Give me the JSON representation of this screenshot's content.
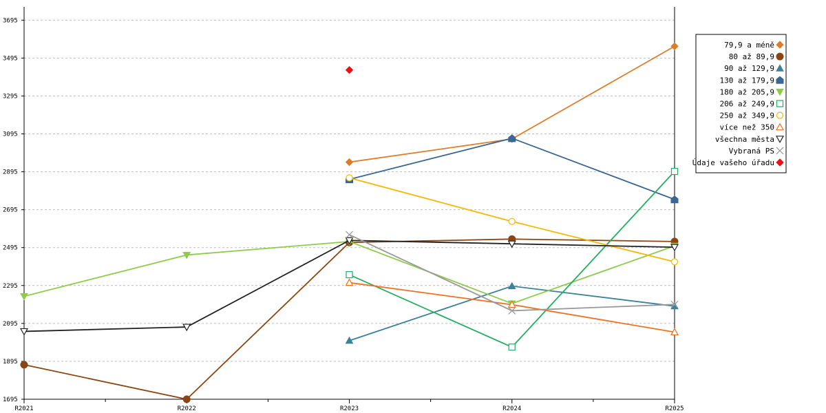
{
  "chart_data": {
    "type": "line",
    "title": "",
    "xlabel": "",
    "ylabel": "",
    "categories": [
      "R2021",
      "R2022",
      "R2023",
      "R2024",
      "R2025"
    ],
    "ylim": [
      1695,
      3765
    ],
    "yticks": [
      1695,
      1895,
      2095,
      2295,
      2495,
      2695,
      2895,
      3095,
      3295,
      3495,
      3695
    ],
    "grid": "horizontal dashed",
    "legend_position": "right",
    "series": [
      {
        "name": "79,9 a méně",
        "color": "#E07B2A",
        "marker": "diamond",
        "values": [
          null,
          null,
          2946,
          3068,
          3557
        ]
      },
      {
        "name": "80 až 89,9",
        "color": "#8B4513",
        "marker": "circle",
        "values": [
          1877,
          1695,
          2522,
          2540,
          2527
        ]
      },
      {
        "name": "90 až 129,9",
        "color": "#3A829A",
        "marker": "triangle-up",
        "values": [
          null,
          null,
          2004,
          2292,
          2186
        ]
      },
      {
        "name": "130 až 179,9",
        "color": "#3B6695",
        "marker": "pentagon",
        "values": [
          null,
          null,
          2855,
          3072,
          2749
        ]
      },
      {
        "name": "180 až 205,9",
        "color": "#8FCB4B",
        "marker": "triangle-down",
        "values": [
          2238,
          2456,
          2527,
          2200,
          2504
        ]
      },
      {
        "name": "206 až 249,9",
        "color": "#1FAE5E",
        "marker": "square-open",
        "values": [
          null,
          null,
          2352,
          1970,
          2897
        ]
      },
      {
        "name": "250 až 349,9",
        "color": "#F5B800",
        "marker": "circle-open",
        "values": [
          null,
          null,
          2863,
          2633,
          2420
        ]
      },
      {
        "name": "více než 350",
        "color": "#F07020",
        "marker": "triangle-up-open",
        "values": [
          null,
          null,
          2310,
          2194,
          2049
        ]
      },
      {
        "name": "všechna města",
        "color": "#222222",
        "marker": "triangle-down-open",
        "values": [
          2053,
          2076,
          2533,
          2515,
          2497
        ]
      },
      {
        "name": "Vybraná PS",
        "color": "#999999",
        "marker": "x",
        "values": [
          null,
          null,
          2563,
          2162,
          2195
        ]
      },
      {
        "name": "Údaje vašeho úřadu",
        "color": "#EE1111",
        "marker": "diamond",
        "values": [
          null,
          null,
          3432,
          null,
          null
        ]
      }
    ]
  }
}
